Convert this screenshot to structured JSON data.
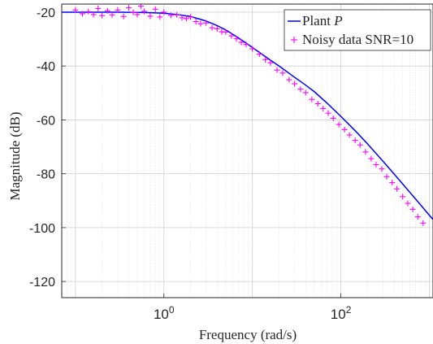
{
  "chart_data": {
    "type": "line",
    "xscale": "log",
    "xlim": [
      0.07,
      1100
    ],
    "ylim": [
      -126,
      -17
    ],
    "xlabel": "Frequency (rad/s)",
    "ylabel": "Magnitude (dB)",
    "x_ticks": [
      {
        "value": 1,
        "base": "10",
        "exp": "0"
      },
      {
        "value": 100,
        "base": "10",
        "exp": "2"
      }
    ],
    "y_ticks": [
      -20,
      -40,
      -60,
      -80,
      -100,
      -120
    ],
    "grid": true,
    "minor_grid": true,
    "legend_position": "top-right",
    "series": [
      {
        "name": "Plant",
        "name_symbol": "P",
        "style": "line",
        "color": "#0000ff",
        "x": [
          0.07,
          0.1,
          0.2,
          0.3,
          0.5,
          0.7,
          1,
          1.5,
          2,
          3,
          4,
          5,
          7,
          10,
          15,
          20,
          30,
          40,
          50,
          70,
          100,
          150,
          200,
          300,
          400,
          500,
          700,
          1000,
          1100
        ],
        "y": [
          -20.0,
          -20.0,
          -20.0,
          -20.0,
          -20.1,
          -20.2,
          -20.4,
          -21.0,
          -21.6,
          -23.3,
          -25.0,
          -26.6,
          -29.6,
          -33.1,
          -37.2,
          -40.0,
          -44.2,
          -47.1,
          -49.5,
          -53.8,
          -58.7,
          -64.5,
          -68.9,
          -75.4,
          -80.1,
          -83.8,
          -89.4,
          -95.4,
          -97.0
        ]
      },
      {
        "name": "Noisy data SNR=10",
        "style": "markers",
        "marker": "+",
        "color": "#ff00ff",
        "x": [
          0.1,
          0.12,
          0.14,
          0.16,
          0.18,
          0.2,
          0.23,
          0.26,
          0.3,
          0.35,
          0.4,
          0.45,
          0.5,
          0.55,
          0.6,
          0.7,
          0.8,
          0.9,
          1.0,
          1.2,
          1.4,
          1.6,
          1.8,
          2.0,
          2.3,
          2.6,
          3.0,
          3.5,
          4.0,
          4.5,
          5.0,
          5.8,
          6.6,
          7.5,
          8.5,
          10,
          12,
          14,
          16,
          19,
          22,
          26,
          30,
          35,
          40,
          47,
          55,
          63,
          72,
          82,
          95,
          110,
          125,
          145,
          165,
          190,
          220,
          250,
          290,
          330,
          380,
          430,
          500,
          570,
          650,
          740,
          850
        ],
        "y": [
          -19.2,
          -20.6,
          -19.8,
          -20.9,
          -18.6,
          -21.3,
          -19.5,
          -21.0,
          -19.2,
          -21.6,
          -18.4,
          -20.1,
          -20.9,
          -17.8,
          -19.7,
          -21.5,
          -18.9,
          -21.8,
          -20.0,
          -21.2,
          -21.0,
          -22.1,
          -22.4,
          -21.8,
          -23.5,
          -24.3,
          -24.0,
          -25.8,
          -26.2,
          -27.3,
          -27.4,
          -28.8,
          -29.9,
          -31.2,
          -32.0,
          -33.6,
          -35.6,
          -37.6,
          -38.8,
          -41.5,
          -42.6,
          -45.1,
          -46.6,
          -48.6,
          -49.9,
          -52.4,
          -54.0,
          -55.8,
          -57.5,
          -59.4,
          -61.7,
          -63.6,
          -65.6,
          -67.6,
          -69.3,
          -71.9,
          -74.4,
          -76.6,
          -78.2,
          -81.1,
          -83.3,
          -85.6,
          -88.5,
          -91.0,
          -93.2,
          -96.0,
          -98.3
        ]
      }
    ]
  }
}
